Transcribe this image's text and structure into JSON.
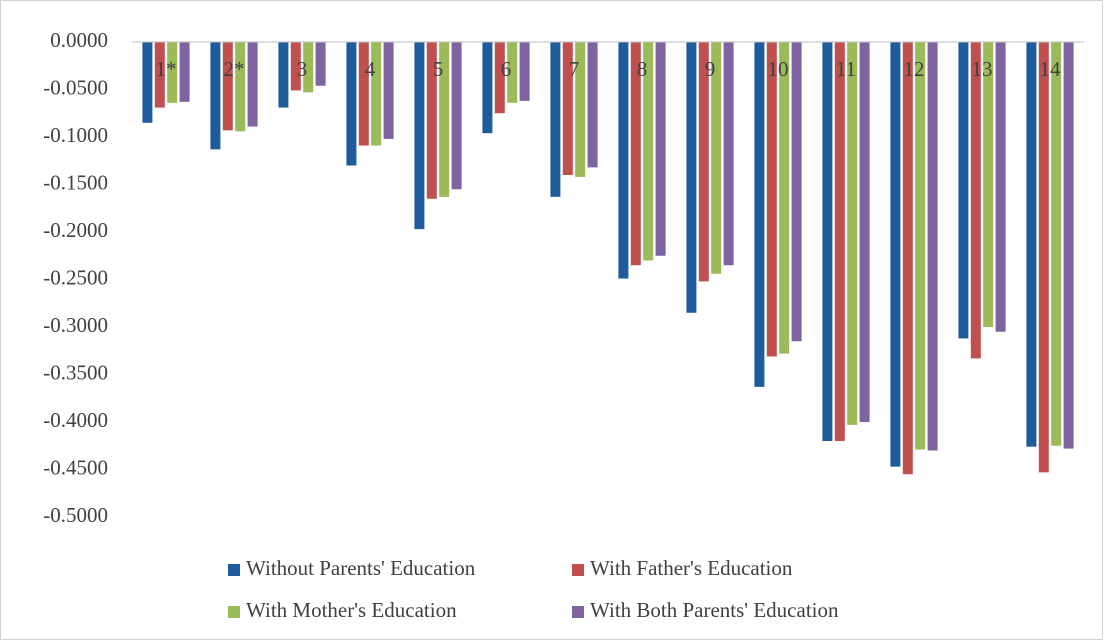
{
  "chart_data": {
    "type": "bar",
    "categories": [
      "1*",
      "2*",
      "3",
      "4",
      "5",
      "6",
      "7",
      "8",
      "9",
      "10",
      "11",
      "12",
      "13",
      "14"
    ],
    "series": [
      {
        "name": "Without Parents' Education",
        "color": "#1f5c9e",
        "values": [
          -0.085,
          -0.113,
          -0.069,
          -0.13,
          -0.197,
          -0.096,
          -0.163,
          -0.249,
          -0.285,
          -0.363,
          -0.42,
          -0.447,
          -0.312,
          -0.426
        ]
      },
      {
        "name": "With Father's Education",
        "color": "#c0504d",
        "values": [
          -0.069,
          -0.093,
          -0.051,
          -0.109,
          -0.165,
          -0.075,
          -0.14,
          -0.235,
          -0.252,
          -0.331,
          -0.42,
          -0.455,
          -0.333,
          -0.453
        ]
      },
      {
        "name": "With Mother's Education",
        "color": "#9bbb59",
        "values": [
          -0.064,
          -0.094,
          -0.053,
          -0.109,
          -0.163,
          -0.064,
          -0.142,
          -0.23,
          -0.244,
          -0.328,
          -0.403,
          -0.429,
          -0.3,
          -0.425
        ]
      },
      {
        "name": "With Both Parents' Education",
        "color": "#8064a2",
        "values": [
          -0.063,
          -0.089,
          -0.046,
          -0.102,
          -0.155,
          -0.062,
          -0.132,
          -0.225,
          -0.235,
          -0.315,
          -0.4,
          -0.43,
          -0.305,
          -0.428
        ]
      }
    ],
    "ylim": [
      -0.5,
      0
    ],
    "yticks": [
      {
        "value": 0,
        "label": "0.0000"
      },
      {
        "value": -0.05,
        "label": "-0.0500"
      },
      {
        "value": -0.1,
        "label": "-0.1000"
      },
      {
        "value": -0.15,
        "label": "-0.1500"
      },
      {
        "value": -0.2,
        "label": "-0.2000"
      },
      {
        "value": -0.25,
        "label": "-0.2500"
      },
      {
        "value": -0.3,
        "label": "-0.3000"
      },
      {
        "value": -0.35,
        "label": "-0.3500"
      },
      {
        "value": -0.4,
        "label": "-0.4000"
      },
      {
        "value": -0.45,
        "label": "-0.4500"
      },
      {
        "value": -0.5,
        "label": "-0.5000"
      }
    ],
    "grid": false,
    "legend": "bottom"
  }
}
